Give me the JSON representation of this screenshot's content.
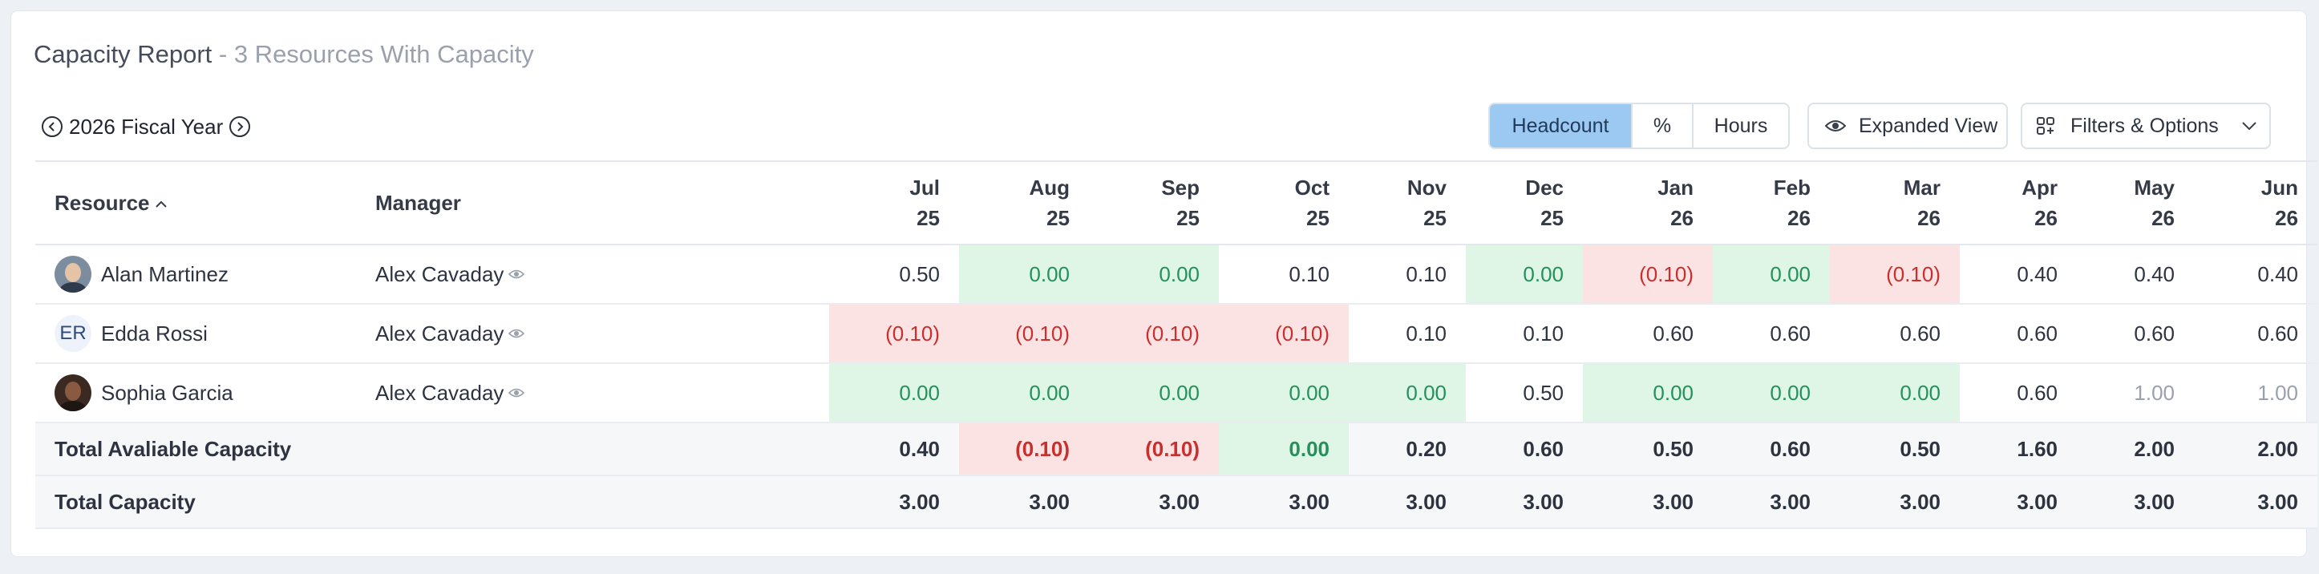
{
  "header": {
    "title": "Capacity Report",
    "subtitle": " - 3 Resources With Capacity"
  },
  "toolbar": {
    "fiscal_year": "2026 Fiscal Year",
    "unit_options": [
      "Headcount",
      "%",
      "Hours"
    ],
    "active_unit": "Headcount",
    "expanded_view_label": "Expanded View",
    "filters_label": "Filters & Options"
  },
  "table": {
    "resource_header": "Resource",
    "manager_header": "Manager",
    "months": [
      {
        "m": "Jul",
        "y": "25"
      },
      {
        "m": "Aug",
        "y": "25"
      },
      {
        "m": "Sep",
        "y": "25"
      },
      {
        "m": "Oct",
        "y": "25"
      },
      {
        "m": "Nov",
        "y": "25"
      },
      {
        "m": "Dec",
        "y": "25"
      },
      {
        "m": "Jan",
        "y": "26"
      },
      {
        "m": "Feb",
        "y": "26"
      },
      {
        "m": "Mar",
        "y": "26"
      },
      {
        "m": "Apr",
        "y": "26"
      },
      {
        "m": "May",
        "y": "26"
      },
      {
        "m": "Jun",
        "y": "26"
      }
    ],
    "rows": [
      {
        "name": "Alan Martinez",
        "avatar": "photo",
        "manager": "Alex Cavaday",
        "values": [
          "0.50",
          "0.00",
          "0.00",
          "0.10",
          "0.10",
          "0.00",
          "(0.10)",
          "0.00",
          "(0.10)",
          "0.40",
          "0.40",
          "0.40"
        ],
        "status": [
          "n",
          "pos",
          "pos",
          "n",
          "n",
          "pos",
          "neg",
          "pos",
          "neg",
          "n",
          "n",
          "n"
        ]
      },
      {
        "name": "Edda Rossi",
        "avatar": "ER",
        "manager": "Alex Cavaday",
        "values": [
          "(0.10)",
          "(0.10)",
          "(0.10)",
          "(0.10)",
          "0.10",
          "0.10",
          "0.60",
          "0.60",
          "0.60",
          "0.60",
          "0.60",
          "0.60"
        ],
        "status": [
          "neg",
          "neg",
          "neg",
          "neg",
          "n",
          "n",
          "n",
          "n",
          "n",
          "n",
          "n",
          "n"
        ]
      },
      {
        "name": "Sophia Garcia",
        "avatar": "photo",
        "manager": "Alex Cavaday",
        "values": [
          "0.00",
          "0.00",
          "0.00",
          "0.00",
          "0.00",
          "0.50",
          "0.00",
          "0.00",
          "0.00",
          "0.60",
          "1.00",
          "1.00"
        ],
        "status": [
          "pos",
          "pos",
          "pos",
          "pos",
          "pos",
          "n",
          "pos",
          "pos",
          "pos",
          "n",
          "muted",
          "muted"
        ]
      }
    ],
    "totals": [
      {
        "label": "Total Avaliable Capacity",
        "values": [
          "0.40",
          "(0.10)",
          "(0.10)",
          "0.00",
          "0.20",
          "0.60",
          "0.50",
          "0.60",
          "0.50",
          "1.60",
          "2.00",
          "2.00"
        ],
        "status": [
          "n",
          "neg",
          "neg",
          "pos",
          "n",
          "n",
          "n",
          "n",
          "n",
          "n",
          "n",
          "n"
        ]
      },
      {
        "label": "Total Capacity",
        "values": [
          "3.00",
          "3.00",
          "3.00",
          "3.00",
          "3.00",
          "3.00",
          "3.00",
          "3.00",
          "3.00",
          "3.00",
          "3.00",
          "3.00"
        ],
        "status": [
          "n",
          "n",
          "n",
          "n",
          "n",
          "n",
          "n",
          "n",
          "n",
          "n",
          "n",
          "n"
        ]
      }
    ]
  },
  "colors": {
    "positive_bg": "#dff6e6",
    "positive_text": "#26905c",
    "negative_bg": "#fbe3e3",
    "negative_text": "#c8302f",
    "active_segment": "#9cc9f1"
  }
}
